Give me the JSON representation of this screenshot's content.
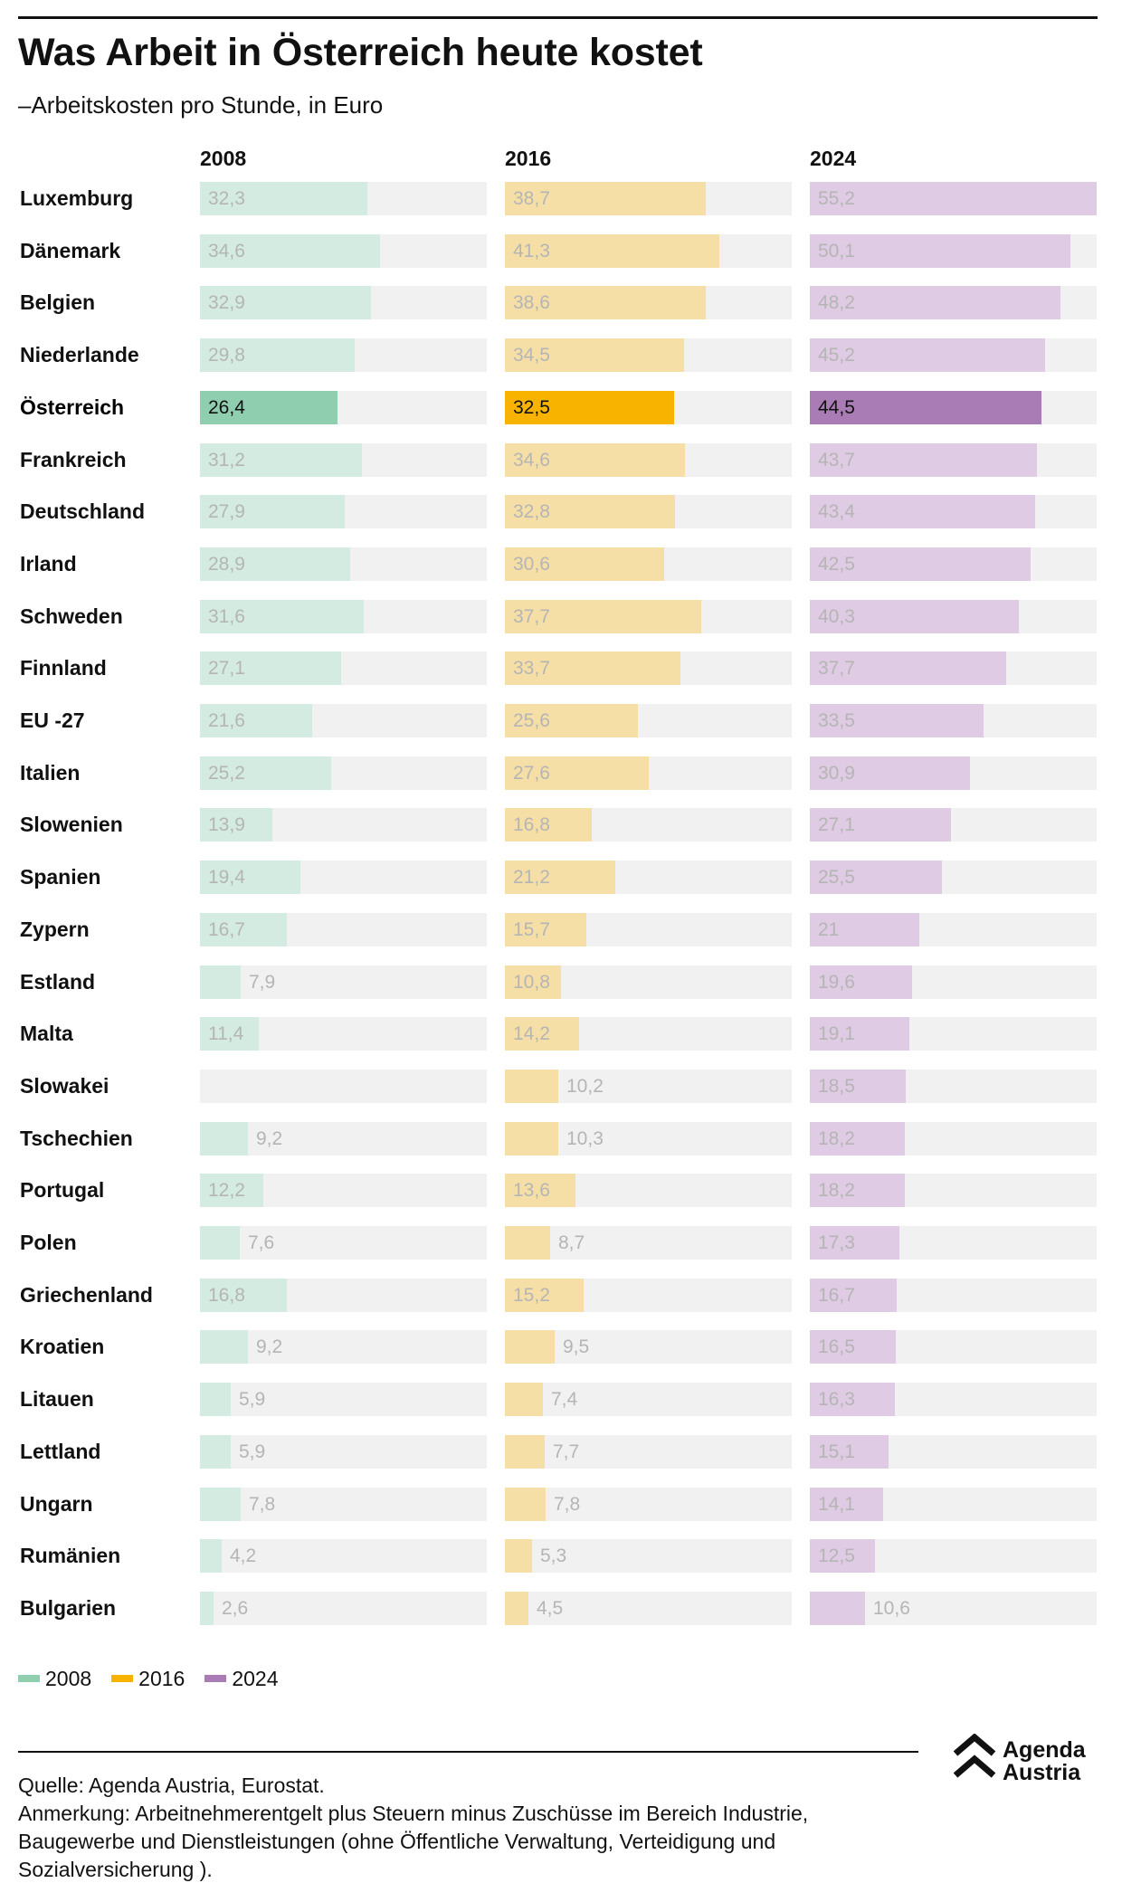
{
  "header": {
    "title": "Was Arbeit in Österreich heute kostet",
    "subtitle": "–Arbeitskosten pro Stunde, in Euro"
  },
  "colors": {
    "2008": "#8fcfb0",
    "2016": "#f7b300",
    "2024": "#a97cb6",
    "2008_light": "#d3ebe1",
    "2016_light": "#f6dfa6",
    "2024_light": "#dfcbe3",
    "track": "#f1f1f1"
  },
  "legend": [
    {
      "label": "2008",
      "color": "#8fcfb0"
    },
    {
      "label": "2016",
      "color": "#f7b300"
    },
    {
      "label": "2024",
      "color": "#a97cb6"
    }
  ],
  "chart_data": {
    "type": "bar",
    "orientation": "horizontal",
    "categories": [
      "Luxemburg",
      "Dänemark",
      "Belgien",
      "Niederlande",
      "Österreich",
      "Frankreich",
      "Deutschland",
      "Irland",
      "Schweden",
      "Finnland",
      "EU -27",
      "Italien",
      "Slowenien",
      "Spanien",
      "Zypern",
      "Estland",
      "Malta",
      "Slowakei",
      "Tschechien",
      "Portugal",
      "Polen",
      "Griechenland",
      "Kroatien",
      "Litauen",
      "Lettland",
      "Ungarn",
      "Rumänien",
      "Bulgarien"
    ],
    "highlight": "Österreich",
    "xlim": [
      0,
      55.2
    ],
    "series": [
      {
        "name": "2008",
        "values": [
          32.3,
          34.6,
          32.9,
          29.8,
          26.4,
          31.2,
          27.9,
          28.9,
          31.6,
          27.1,
          21.6,
          25.2,
          13.9,
          19.4,
          16.7,
          7.9,
          11.4,
          null,
          9.2,
          12.2,
          7.6,
          16.8,
          9.2,
          5.9,
          5.9,
          7.8,
          4.2,
          2.6
        ],
        "labels": [
          "32,3",
          "34,6",
          "32,9",
          "29,8",
          "26,4",
          "31,2",
          "27,9",
          "28,9",
          "31,6",
          "27,1",
          "21,6",
          "25,2",
          "13,9",
          "19,4",
          "16,7",
          "7,9",
          "11,4",
          "",
          "9,2",
          "12,2",
          "7,6",
          "16,8",
          "9,2",
          "5,9",
          "5,9",
          "7,8",
          "4,2",
          "2,6"
        ]
      },
      {
        "name": "2016",
        "values": [
          38.7,
          41.3,
          38.6,
          34.5,
          32.5,
          34.6,
          32.8,
          30.6,
          37.7,
          33.7,
          25.6,
          27.6,
          16.8,
          21.2,
          15.7,
          10.8,
          14.2,
          10.2,
          10.3,
          13.6,
          8.7,
          15.2,
          9.5,
          7.4,
          7.7,
          7.8,
          5.3,
          4.5
        ],
        "labels": [
          "38,7",
          "41,3",
          "38,6",
          "34,5",
          "32,5",
          "34,6",
          "32,8",
          "30,6",
          "37,7",
          "33,7",
          "25,6",
          "27,6",
          "16,8",
          "21,2",
          "15,7",
          "10,8",
          "14,2",
          "10,2",
          "10,3",
          "13,6",
          "8,7",
          "15,2",
          "9,5",
          "7,4",
          "7,7",
          "7,8",
          "5,3",
          "4,5"
        ]
      },
      {
        "name": "2024",
        "values": [
          55.2,
          50.1,
          48.2,
          45.2,
          44.5,
          43.7,
          43.4,
          42.5,
          40.3,
          37.7,
          33.5,
          30.9,
          27.1,
          25.5,
          21,
          19.6,
          19.1,
          18.5,
          18.2,
          18.2,
          17.3,
          16.7,
          16.5,
          16.3,
          15.1,
          14.1,
          12.5,
          10.6
        ],
        "labels": [
          "55,2",
          "50,1",
          "48,2",
          "45,2",
          "44,5",
          "43,7",
          "43,4",
          "42,5",
          "40,3",
          "37,7",
          "33,5",
          "30,9",
          "27,1",
          "25,5",
          "21",
          "19,6",
          "19,1",
          "18,5",
          "18,2",
          "18,2",
          "17,3",
          "16,7",
          "16,5",
          "16,3",
          "15,1",
          "14,1",
          "12,5",
          "10,6"
        ]
      }
    ]
  },
  "footer": {
    "source": "Quelle: Agenda Austria, Eurostat.",
    "note": "Anmerkung: Arbeitnehmerentgelt plus Steuern minus Zuschüsse im Bereich Industrie, Baugewerbe und Dienstleistungen (ohne Öffentliche Verwaltung, Verteidigung und Sozialversicherung ).",
    "logo_line1": "Agenda",
    "logo_line2": "Austria"
  }
}
